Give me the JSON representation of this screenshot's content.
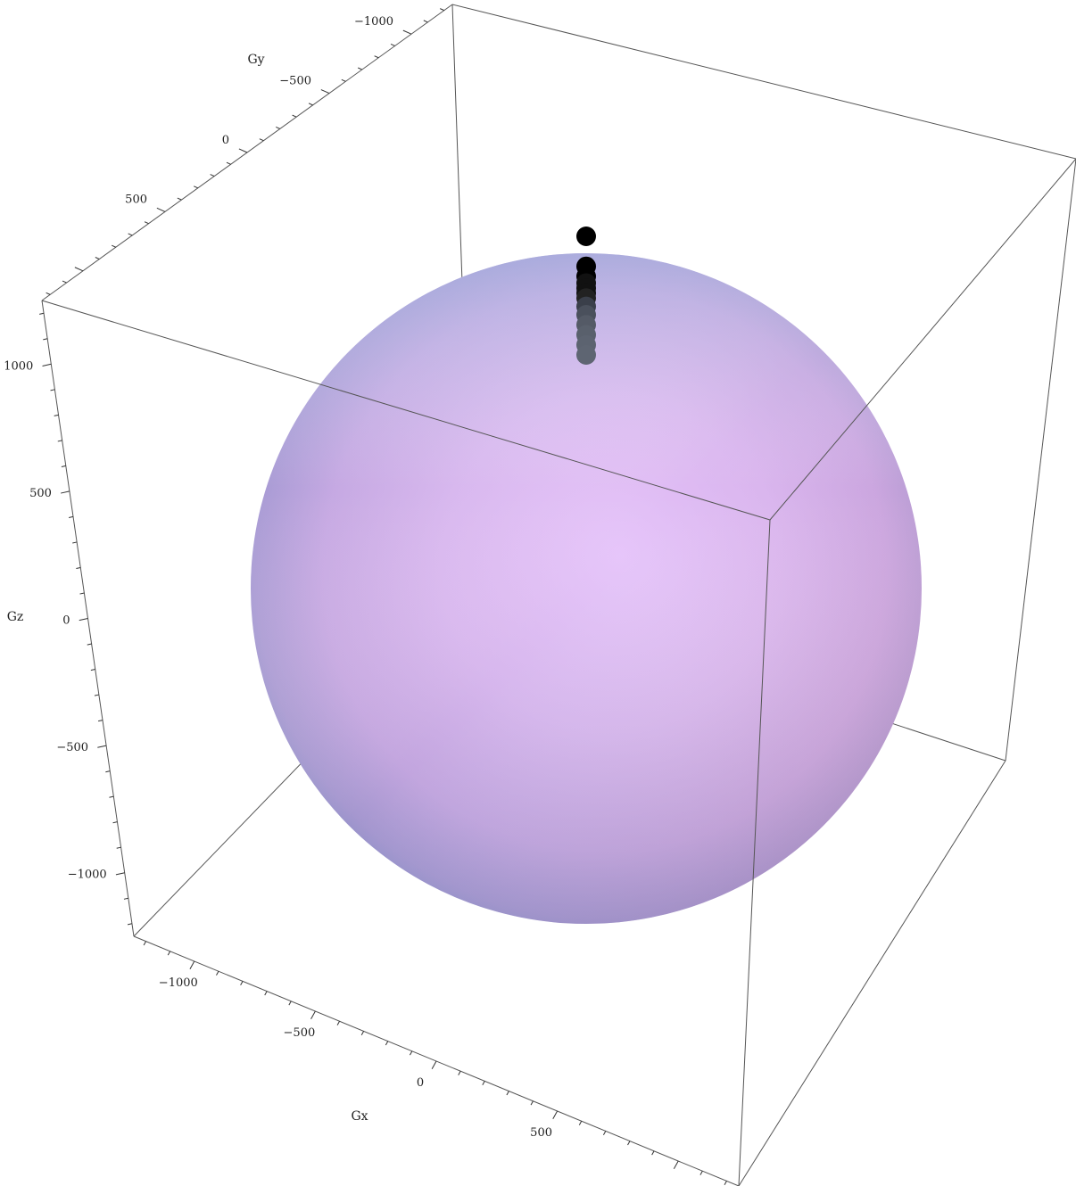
{
  "chart_data": {
    "type": "scatter",
    "subtype": "3d-sphere-with-points",
    "xlabel": "Gx",
    "ylabel": "Gy",
    "zlabel": "Gz",
    "xticks": [
      {
        "value": -1000,
        "label": "−1000"
      },
      {
        "value": -500,
        "label": "−500"
      },
      {
        "value": 0,
        "label": "0"
      },
      {
        "value": 500,
        "label": "500"
      }
    ],
    "yticks": [
      {
        "value": -1000,
        "label": "−1000"
      },
      {
        "value": -500,
        "label": "−500"
      },
      {
        "value": 0,
        "label": "0"
      },
      {
        "value": 500,
        "label": "500"
      }
    ],
    "zticks": [
      {
        "value": -1000,
        "label": "−1000"
      },
      {
        "value": -500,
        "label": "−500"
      },
      {
        "value": 0,
        "label": "0"
      },
      {
        "value": 500,
        "label": "500"
      },
      {
        "value": 1000,
        "label": "1000"
      }
    ],
    "sphere": {
      "center": [
        0,
        0,
        0
      ],
      "radius": 1000
    },
    "series": [
      {
        "points": [
          {
            "x": 0,
            "y": 0,
            "z": 1170,
            "color": "#000000"
          },
          {
            "x": 0,
            "y": 0,
            "z": 1080,
            "color": "#000000"
          },
          {
            "x": 0,
            "y": 0,
            "z": 1050,
            "color": "#000000"
          },
          {
            "x": 0,
            "y": 0,
            "z": 1030,
            "color": "#111111"
          },
          {
            "x": 0,
            "y": 0,
            "z": 1015,
            "color": "#111111"
          },
          {
            "x": 0,
            "y": 0,
            "z": 1000,
            "color": "#111111"
          },
          {
            "x": 0,
            "y": 0,
            "z": 985,
            "color": "#222222"
          },
          {
            "x": 0,
            "y": 0,
            "z": 960,
            "color": "#3a3f4a"
          },
          {
            "x": 0,
            "y": 0,
            "z": 935,
            "color": "#4a505c"
          },
          {
            "x": 0,
            "y": 0,
            "z": 905,
            "color": "#545a66"
          },
          {
            "x": 0,
            "y": 0,
            "z": 875,
            "color": "#59606c"
          },
          {
            "x": 0,
            "y": 0,
            "z": 845,
            "color": "#5c6370"
          },
          {
            "x": 0,
            "y": 0,
            "z": 815,
            "color": "#5e6572"
          }
        ]
      }
    ],
    "colors": {
      "sphere_center": "#e4c2f8",
      "sphere_mid": "#d4aee8",
      "sphere_edge_blue": "#8a8ed0",
      "sphere_edge_red": "#c07aa8",
      "box_line": "#444444"
    }
  }
}
